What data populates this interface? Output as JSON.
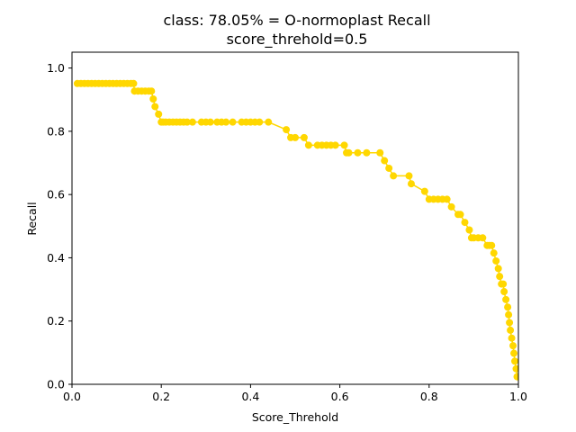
{
  "chart_data": {
    "type": "line",
    "title_line1": "class: 78.05% = O-normoplast Recall",
    "title_line2": "score_threhold=0.5",
    "xlabel": "Score_Threhold",
    "ylabel": "Recall",
    "xlim": [
      0.0,
      1.0
    ],
    "ylim": [
      0.0,
      1.05
    ],
    "x_ticks": [
      0.0,
      0.2,
      0.4,
      0.6,
      0.8,
      1.0
    ],
    "x_tick_labels": [
      "0.0",
      "0.2",
      "0.4",
      "0.6",
      "0.8",
      "1.0"
    ],
    "y_ticks": [
      0.0,
      0.2,
      0.4,
      0.6,
      0.8,
      1.0
    ],
    "y_tick_labels": [
      "0.0",
      "0.2",
      "0.4",
      "0.6",
      "0.8",
      "1.0"
    ],
    "grid": false,
    "series": [
      {
        "color": "#FFD700",
        "marker": "circle",
        "x": [
          0.012,
          0.02,
          0.028,
          0.036,
          0.044,
          0.052,
          0.06,
          0.068,
          0.076,
          0.084,
          0.092,
          0.1,
          0.108,
          0.116,
          0.124,
          0.132,
          0.138,
          0.14,
          0.148,
          0.156,
          0.164,
          0.172,
          0.178,
          0.182,
          0.186,
          0.194,
          0.2,
          0.204,
          0.21,
          0.218,
          0.226,
          0.234,
          0.242,
          0.25,
          0.258,
          0.27,
          0.29,
          0.3,
          0.31,
          0.325,
          0.335,
          0.345,
          0.36,
          0.38,
          0.39,
          0.4,
          0.41,
          0.42,
          0.44,
          0.48,
          0.49,
          0.5,
          0.52,
          0.53,
          0.55,
          0.56,
          0.57,
          0.58,
          0.59,
          0.61,
          0.615,
          0.62,
          0.64,
          0.66,
          0.69,
          0.7,
          0.71,
          0.72,
          0.755,
          0.76,
          0.79,
          0.8,
          0.81,
          0.82,
          0.83,
          0.84,
          0.85,
          0.865,
          0.87,
          0.88,
          0.89,
          0.895,
          0.9,
          0.91,
          0.92,
          0.93,
          0.935,
          0.94,
          0.945,
          0.95,
          0.955,
          0.958,
          0.962,
          0.966,
          0.968,
          0.972,
          0.976,
          0.978,
          0.98,
          0.982,
          0.985,
          0.988,
          0.99,
          0.992,
          0.995,
          0.997,
          0.998,
          0.999,
          1.0
        ],
        "y": [
          0.951,
          0.951,
          0.951,
          0.951,
          0.951,
          0.951,
          0.951,
          0.951,
          0.951,
          0.951,
          0.951,
          0.951,
          0.951,
          0.951,
          0.951,
          0.951,
          0.951,
          0.927,
          0.927,
          0.927,
          0.927,
          0.927,
          0.927,
          0.902,
          0.878,
          0.854,
          0.829,
          0.829,
          0.829,
          0.829,
          0.829,
          0.829,
          0.829,
          0.829,
          0.829,
          0.829,
          0.829,
          0.829,
          0.829,
          0.829,
          0.829,
          0.829,
          0.829,
          0.829,
          0.829,
          0.829,
          0.829,
          0.829,
          0.829,
          0.805,
          0.78,
          0.78,
          0.78,
          0.756,
          0.756,
          0.756,
          0.756,
          0.756,
          0.756,
          0.756,
          0.732,
          0.732,
          0.732,
          0.732,
          0.732,
          0.707,
          0.683,
          0.659,
          0.659,
          0.634,
          0.61,
          0.585,
          0.585,
          0.585,
          0.585,
          0.585,
          0.561,
          0.537,
          0.537,
          0.512,
          0.488,
          0.463,
          0.463,
          0.463,
          0.463,
          0.439,
          0.439,
          0.439,
          0.415,
          0.39,
          0.366,
          0.341,
          0.317,
          0.317,
          0.293,
          0.268,
          0.244,
          0.22,
          0.195,
          0.171,
          0.146,
          0.122,
          0.098,
          0.073,
          0.049,
          0.024,
          0.024,
          0.024,
          0.024
        ]
      }
    ]
  }
}
